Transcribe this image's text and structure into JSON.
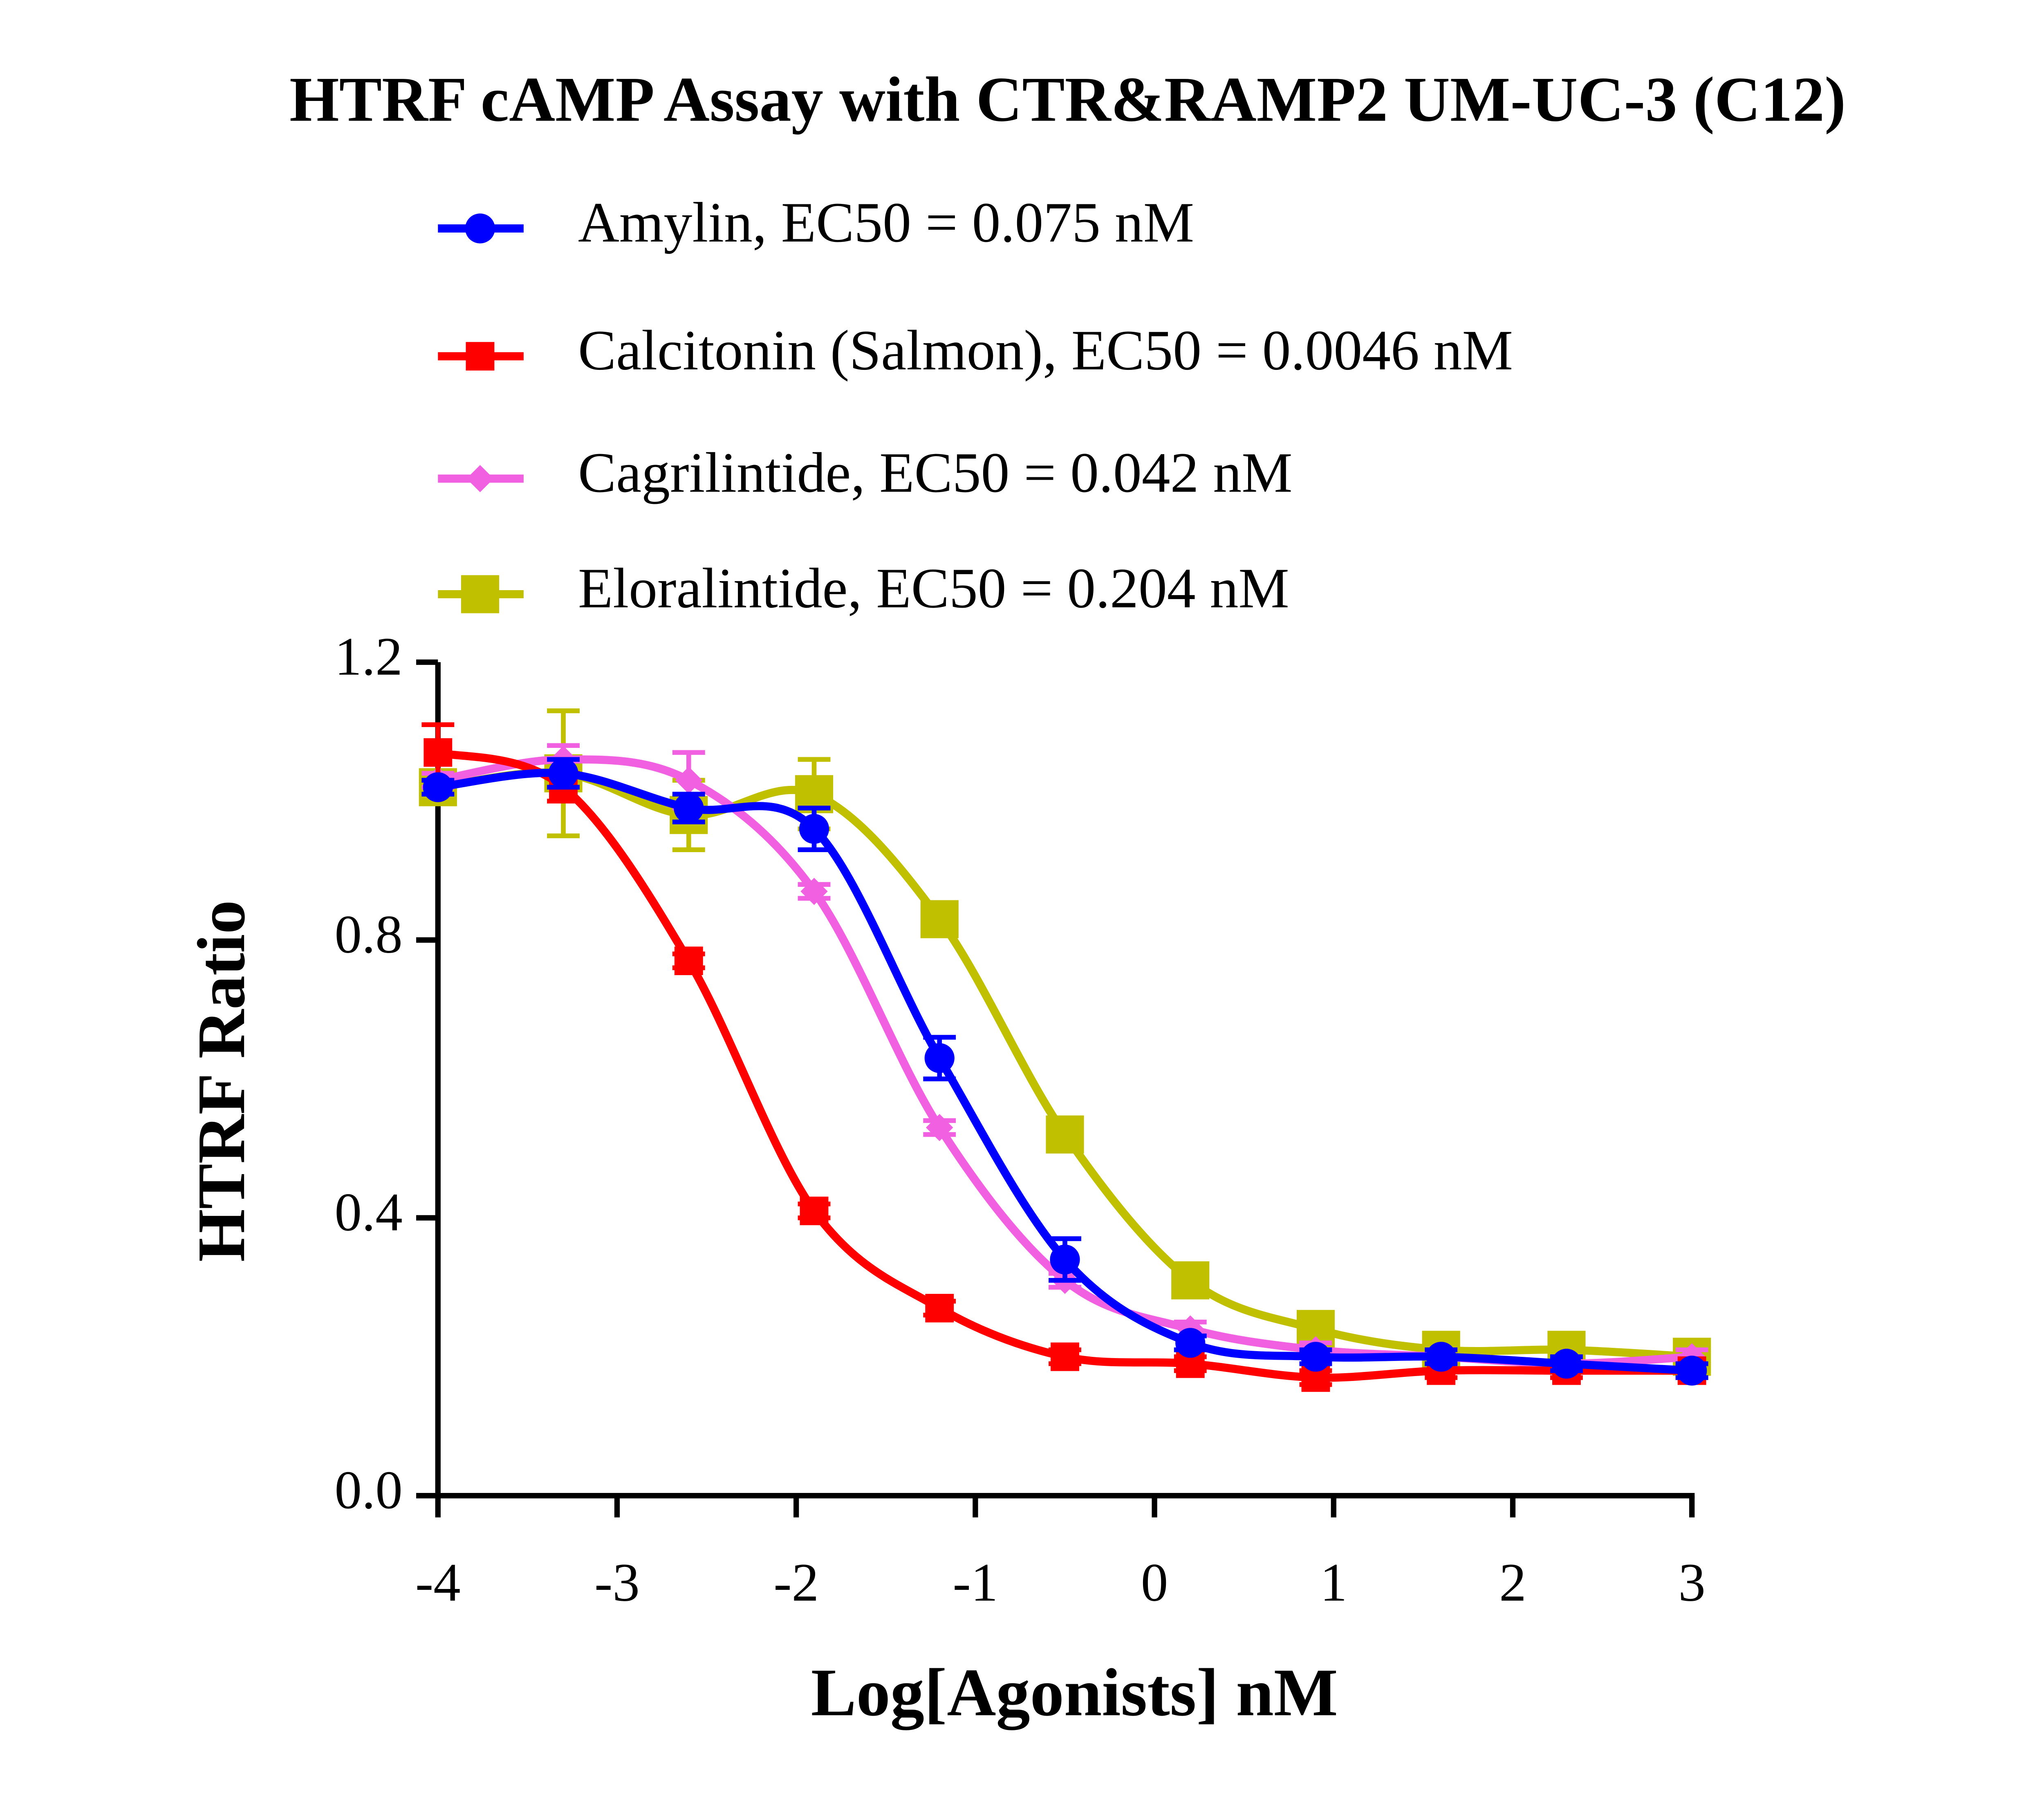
{
  "chart_data": {
    "type": "line",
    "title": "HTRF cAMP Assay with CTR&RAMP2 UM-UC-3 (C12)",
    "x_label": "Log[Agonists] nM",
    "y_label": "HTRF Ratio",
    "x": [
      -4,
      -3.3,
      -2.6,
      -1.9,
      -1.2,
      -0.5,
      0.2,
      0.9,
      1.6,
      2.3,
      3
    ],
    "series": [
      {
        "name": "Amylin, EC50 = 0.075 nM",
        "color": "#0000ff",
        "marker": "circle",
        "values": [
          1.02,
          1.04,
          0.99,
          0.96,
          0.63,
          0.34,
          0.22,
          0.2,
          0.2,
          0.19,
          0.18
        ],
        "errors": [
          0.01,
          0.02,
          0.02,
          0.03,
          0.03,
          0.03,
          0.01,
          0.01,
          0.01,
          0.01,
          0.01
        ]
      },
      {
        "name": "Calcitonin (Salmon), EC50 = 0.0046 nM",
        "color": "#ff0000",
        "marker": "square",
        "values": [
          1.07,
          1.02,
          0.77,
          0.41,
          0.27,
          0.2,
          0.19,
          0.17,
          0.18,
          0.18,
          0.18
        ],
        "errors": [
          0.04,
          0.02,
          0.01,
          0.01,
          0.01,
          0.01,
          0.01,
          0.01,
          0.01,
          0.01,
          0.01
        ]
      },
      {
        "name": "Cagrilintide, EC50 = 0.042 nM",
        "color": "#f060e0",
        "marker": "diamond",
        "values": [
          1.03,
          1.06,
          1.03,
          0.87,
          0.53,
          0.31,
          0.24,
          0.21,
          0.2,
          0.19,
          0.2
        ],
        "errors": [
          0.01,
          0.02,
          0.04,
          0.01,
          0.01,
          0.01,
          0.01,
          0.01,
          0.01,
          0.01,
          0.01
        ]
      },
      {
        "name": "Eloralintide, EC50 = 0.204 nM",
        "color": "#c0c000",
        "marker": "bigsquare",
        "values": [
          1.02,
          1.04,
          0.98,
          1.01,
          0.83,
          0.52,
          0.31,
          0.24,
          0.21,
          0.21,
          0.2
        ],
        "errors": [
          0.01,
          0.09,
          0.05,
          0.05,
          0.01,
          0.01,
          0.01,
          0.01,
          0.01,
          0.01,
          0.01
        ]
      }
    ],
    "xlim": [
      -4,
      3
    ],
    "xticks": [
      -4,
      -3,
      -2,
      -1,
      0,
      1,
      2,
      3
    ],
    "ylim": [
      0,
      1.2
    ],
    "yticks": [
      {
        "value": 0,
        "label": "0.0"
      },
      0.4,
      0.8,
      1.2
    ]
  }
}
